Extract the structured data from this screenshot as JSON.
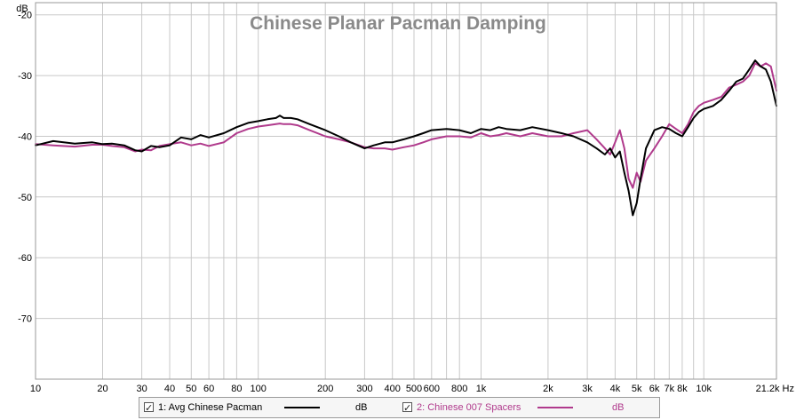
{
  "chart_data": {
    "type": "line",
    "title": "Chinese Planar Pacman Damping",
    "ylabel": "dB",
    "xunit": "Hz",
    "xscale": "log",
    "xlim": [
      10,
      21200
    ],
    "ylim": [
      -80,
      -18
    ],
    "grid": true,
    "x_ticks": [
      {
        "v": 10,
        "label": "10"
      },
      {
        "v": 20,
        "label": "20"
      },
      {
        "v": 30,
        "label": "30"
      },
      {
        "v": 40,
        "label": "40"
      },
      {
        "v": 50,
        "label": "50"
      },
      {
        "v": 60,
        "label": "60"
      },
      {
        "v": 80,
        "label": "80"
      },
      {
        "v": 100,
        "label": "100"
      },
      {
        "v": 200,
        "label": "200"
      },
      {
        "v": 300,
        "label": "300"
      },
      {
        "v": 400,
        "label": "400"
      },
      {
        "v": 500,
        "label": "500"
      },
      {
        "v": 600,
        "label": "600"
      },
      {
        "v": 800,
        "label": "800"
      },
      {
        "v": 1000,
        "label": "1k"
      },
      {
        "v": 2000,
        "label": "2k"
      },
      {
        "v": 3000,
        "label": "3k"
      },
      {
        "v": 4000,
        "label": "4k"
      },
      {
        "v": 5000,
        "label": "5k"
      },
      {
        "v": 6000,
        "label": "6k"
      },
      {
        "v": 7000,
        "label": "7k"
      },
      {
        "v": 8000,
        "label": "8k"
      },
      {
        "v": 10000,
        "label": "10k"
      },
      {
        "v": 21200,
        "label": "21.2k Hz"
      }
    ],
    "x_minor": [
      70,
      700,
      9000
    ],
    "y_ticks": [
      {
        "v": -20,
        "label": "-20"
      },
      {
        "v": -30,
        "label": "-30"
      },
      {
        "v": -40,
        "label": "-40"
      },
      {
        "v": -50,
        "label": "-50"
      },
      {
        "v": -60,
        "label": "-60"
      },
      {
        "v": -70,
        "label": "-70"
      }
    ],
    "series": [
      {
        "name": "1: Avg Chinese Pacman",
        "unit": "dB",
        "color": "#000000",
        "x": [
          10,
          12,
          15,
          18,
          20,
          22,
          25,
          28,
          30,
          33,
          36,
          40,
          45,
          50,
          55,
          60,
          70,
          80,
          90,
          100,
          110,
          120,
          125,
          130,
          140,
          150,
          170,
          200,
          230,
          260,
          300,
          330,
          370,
          400,
          450,
          500,
          550,
          600,
          700,
          800,
          900,
          1000,
          1100,
          1200,
          1300,
          1500,
          1700,
          2000,
          2300,
          2600,
          3000,
          3300,
          3600,
          3800,
          4000,
          4200,
          4400,
          4600,
          4800,
          5000,
          5200,
          5500,
          6000,
          6500,
          7000,
          7500,
          8000,
          8500,
          9000,
          9500,
          10000,
          11000,
          12000,
          13000,
          14000,
          15000,
          16000,
          17000,
          18000,
          19000,
          20000,
          21200
        ],
        "values": [
          -41.5,
          -40.8,
          -41.2,
          -41.0,
          -41.3,
          -41.2,
          -41.5,
          -42.3,
          -42.5,
          -41.6,
          -41.8,
          -41.5,
          -40.2,
          -40.5,
          -39.8,
          -40.2,
          -39.5,
          -38.5,
          -37.8,
          -37.5,
          -37.2,
          -37.0,
          -36.6,
          -37.0,
          -37.0,
          -37.2,
          -38.0,
          -39.0,
          -40.0,
          -41.0,
          -42.0,
          -41.5,
          -41.0,
          -41.0,
          -40.5,
          -40.0,
          -39.5,
          -39.0,
          -38.8,
          -39.0,
          -39.5,
          -38.8,
          -39.0,
          -38.5,
          -38.8,
          -39.0,
          -38.5,
          -39.0,
          -39.5,
          -40.0,
          -41.0,
          -42.0,
          -43.0,
          -42.0,
          -43.5,
          -42.5,
          -46.0,
          -49.0,
          -53.0,
          -51.0,
          -47.0,
          -42.0,
          -39.0,
          -38.5,
          -38.8,
          -39.5,
          -40.0,
          -38.5,
          -37.0,
          -36.0,
          -35.5,
          -35.0,
          -34.0,
          -32.5,
          -31.0,
          -30.5,
          -29.0,
          -27.5,
          -28.5,
          -29.0,
          -31.0,
          -35.0
        ]
      },
      {
        "name": "2: Chinese 007 Spacers",
        "unit": "dB",
        "color": "#b03a8c",
        "x": [
          10,
          12,
          15,
          18,
          20,
          22,
          25,
          28,
          30,
          33,
          36,
          40,
          45,
          50,
          55,
          60,
          70,
          80,
          90,
          100,
          110,
          120,
          125,
          130,
          140,
          150,
          170,
          200,
          230,
          260,
          300,
          330,
          370,
          400,
          450,
          500,
          550,
          600,
          700,
          800,
          900,
          1000,
          1100,
          1200,
          1300,
          1500,
          1700,
          2000,
          2300,
          2600,
          3000,
          3300,
          3600,
          3800,
          4000,
          4200,
          4400,
          4600,
          4800,
          5000,
          5200,
          5500,
          6000,
          6500,
          7000,
          7500,
          8000,
          8500,
          9000,
          9500,
          10000,
          11000,
          12000,
          13000,
          14000,
          15000,
          16000,
          17000,
          18000,
          19000,
          20000,
          21200
        ],
        "values": [
          -41.3,
          -41.5,
          -41.7,
          -41.4,
          -41.4,
          -41.6,
          -41.8,
          -42.5,
          -42.2,
          -42.3,
          -41.6,
          -41.3,
          -41.0,
          -41.5,
          -41.2,
          -41.6,
          -41.0,
          -39.5,
          -38.8,
          -38.4,
          -38.2,
          -38.0,
          -37.9,
          -38.0,
          -38.0,
          -38.2,
          -39.0,
          -40.0,
          -40.5,
          -41.0,
          -41.8,
          -42.0,
          -42.0,
          -42.2,
          -41.8,
          -41.5,
          -41.0,
          -40.5,
          -40.0,
          -40.0,
          -40.2,
          -39.5,
          -40.0,
          -39.8,
          -39.5,
          -40.0,
          -39.5,
          -40.0,
          -40.0,
          -39.5,
          -39.0,
          -40.5,
          -42.0,
          -43.0,
          -41.0,
          -39.0,
          -42.0,
          -47.0,
          -48.5,
          -46.0,
          -47.5,
          -44.0,
          -42.0,
          -40.0,
          -38.0,
          -38.8,
          -39.5,
          -38.0,
          -36.0,
          -35.0,
          -34.5,
          -34.0,
          -33.5,
          -32.0,
          -31.5,
          -31.0,
          -30.0,
          -28.0,
          -28.5,
          -28.0,
          -28.5,
          -32.5
        ]
      }
    ]
  }
}
